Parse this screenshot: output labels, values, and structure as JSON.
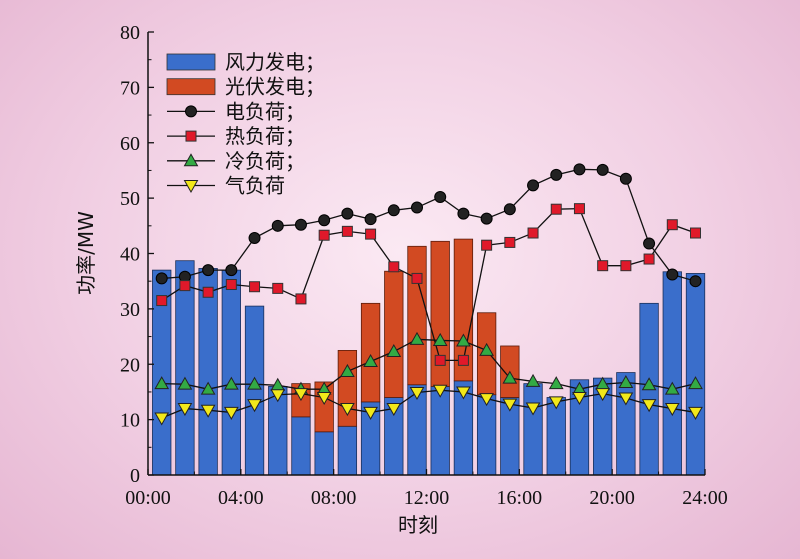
{
  "chart_data": {
    "type": "bar",
    "xlabel": "时刻",
    "ylabel": "功率/MW",
    "ylim": [
      0,
      80
    ],
    "xlim": [
      0,
      24
    ],
    "yticks": [
      "0",
      "10",
      "20",
      "30",
      "40",
      "50",
      "60",
      "70",
      "80"
    ],
    "xticks": [
      "00:00",
      "04:00",
      "08:00",
      "12:00",
      "16:00",
      "20:00",
      "24:00"
    ],
    "hours": [
      1,
      2,
      3,
      4,
      5,
      6,
      7,
      8,
      9,
      10,
      11,
      12,
      13,
      14,
      15,
      16,
      17,
      18,
      19,
      20,
      21,
      22,
      23,
      24
    ],
    "bar_series": [
      {
        "name": "风力发电；",
        "color": "#3a6ecb",
        "values": [
          37.0,
          38.7,
          37.3,
          37.0,
          30.5,
          16.0,
          10.5,
          7.8,
          8.8,
          13.2,
          14.0,
          16.3,
          16.0,
          17.0,
          14.5,
          14.0,
          16.5,
          14.0,
          17.2,
          17.5,
          18.5,
          31.0,
          36.7,
          36.4
        ]
      },
      {
        "name": "光伏发电；",
        "color": "#d24a22",
        "values": [
          0,
          0,
          0,
          0,
          0,
          0,
          6.0,
          9.0,
          13.7,
          17.8,
          22.8,
          25.0,
          26.2,
          25.6,
          14.8,
          9.3,
          0,
          0,
          0,
          0,
          0,
          0,
          0,
          0
        ]
      }
    ],
    "line_series": [
      {
        "name": "电负荷；",
        "color": "#222222",
        "marker": "circle",
        "values": [
          35.5,
          35.8,
          37.0,
          37.0,
          42.8,
          45.0,
          45.2,
          46.0,
          47.2,
          46.2,
          47.8,
          48.3,
          50.2,
          47.2,
          46.3,
          48.0,
          52.3,
          54.2,
          55.2,
          55.1,
          53.5,
          41.8,
          36.2,
          35.0
        ]
      },
      {
        "name": "热负荷；",
        "color": "#e0192a",
        "marker": "square",
        "values": [
          31.5,
          34.2,
          33.0,
          34.4,
          34.0,
          33.7,
          31.8,
          43.3,
          44.0,
          43.5,
          37.6,
          35.5,
          20.7,
          20.7,
          41.5,
          42.0,
          43.7,
          48.0,
          48.1,
          37.8,
          37.8,
          39.0,
          45.2,
          43.7
        ]
      },
      {
        "name": "冷负荷；",
        "color": "#33aa44",
        "marker": "triangle-up",
        "values": [
          16.5,
          16.4,
          15.5,
          16.4,
          16.4,
          16.2,
          15.5,
          15.5,
          18.7,
          20.5,
          22.3,
          24.5,
          24.3,
          24.2,
          22.5,
          17.5,
          16.9,
          16.5,
          15.5,
          16.4,
          16.7,
          16.3,
          15.5,
          16.5
        ]
      },
      {
        "name": "气负荷",
        "color": "#f2e81a",
        "marker": "triangle-down",
        "values": [
          10.3,
          12.0,
          11.7,
          11.3,
          12.7,
          14.5,
          14.7,
          14.0,
          12.0,
          11.3,
          12.0,
          14.9,
          15.3,
          15.0,
          13.8,
          12.8,
          12.1,
          13.2,
          14.0,
          14.7,
          13.9,
          12.7,
          12.0,
          11.3
        ]
      }
    ]
  }
}
